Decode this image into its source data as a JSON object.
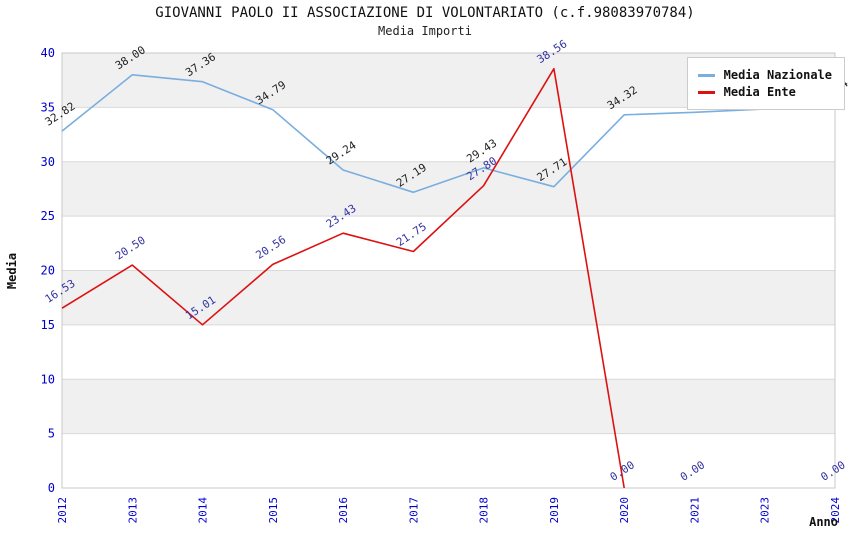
{
  "title": "GIOVANNI PAOLO II ASSOCIAZIONE DI VOLONTARIATO (c.f.98083970784)",
  "subtitle": "Media Importi",
  "legend": [
    {
      "label": "Media Nazionale",
      "color": "#7aaede"
    },
    {
      "label": "Media Ente",
      "color": "#dd1111"
    }
  ],
  "colors": {
    "band_gray": "#f0f0f0",
    "band_white": "#ffffff",
    "gridline": "#d9d9d9",
    "plot_border": "#c8c8c8",
    "tick_label": "#0000cc"
  },
  "chart_data": {
    "type": "line",
    "title": "GIOVANNI PAOLO II ASSOCIAZIONE DI VOLONTARIATO (c.f.98083970784)",
    "subtitle": "Media Importi",
    "xlabel": "Anno",
    "ylabel": "Media",
    "ylim": [
      0,
      40
    ],
    "ytick_step": 5,
    "ytick_labels": [
      "0",
      "5",
      "10",
      "15",
      "20",
      "25",
      "30",
      "35",
      "40"
    ],
    "categories": [
      "2012",
      "2013",
      "2014",
      "2015",
      "2016",
      "2017",
      "2018",
      "2019",
      "2020",
      "2021",
      "2023",
      "2024"
    ],
    "grid": "horizontal-bands-alternating",
    "legend_position": "top-right",
    "series": [
      {
        "name": "Media Nazionale",
        "color": "#7aaede",
        "label_color": "#222222",
        "values": [
          32.82,
          38.0,
          37.36,
          34.79,
          29.24,
          27.19,
          29.43,
          27.71,
          34.32,
          34.55,
          34.85,
          34.94
        ],
        "labels": [
          "32.82",
          "38.00",
          "37.36",
          "34.79",
          "29.24",
          "27.19",
          "29.43",
          "27.71",
          "34.32",
          "",
          "",
          "34.94"
        ],
        "draw_segments": [
          [
            0,
            11
          ]
        ]
      },
      {
        "name": "Media Ente",
        "color": "#dd1111",
        "label_color": "#3333a0",
        "values": [
          16.53,
          20.5,
          15.01,
          20.56,
          23.43,
          21.75,
          27.8,
          38.56,
          0,
          0,
          null,
          0
        ],
        "labels": [
          "16.53",
          "20.50",
          "15.01",
          "20.56",
          "23.43",
          "21.75",
          "27.80",
          "38.56",
          "0.00",
          "0.00",
          "",
          "0.00"
        ],
        "draw_segments": [
          [
            0,
            8
          ]
        ]
      }
    ]
  }
}
